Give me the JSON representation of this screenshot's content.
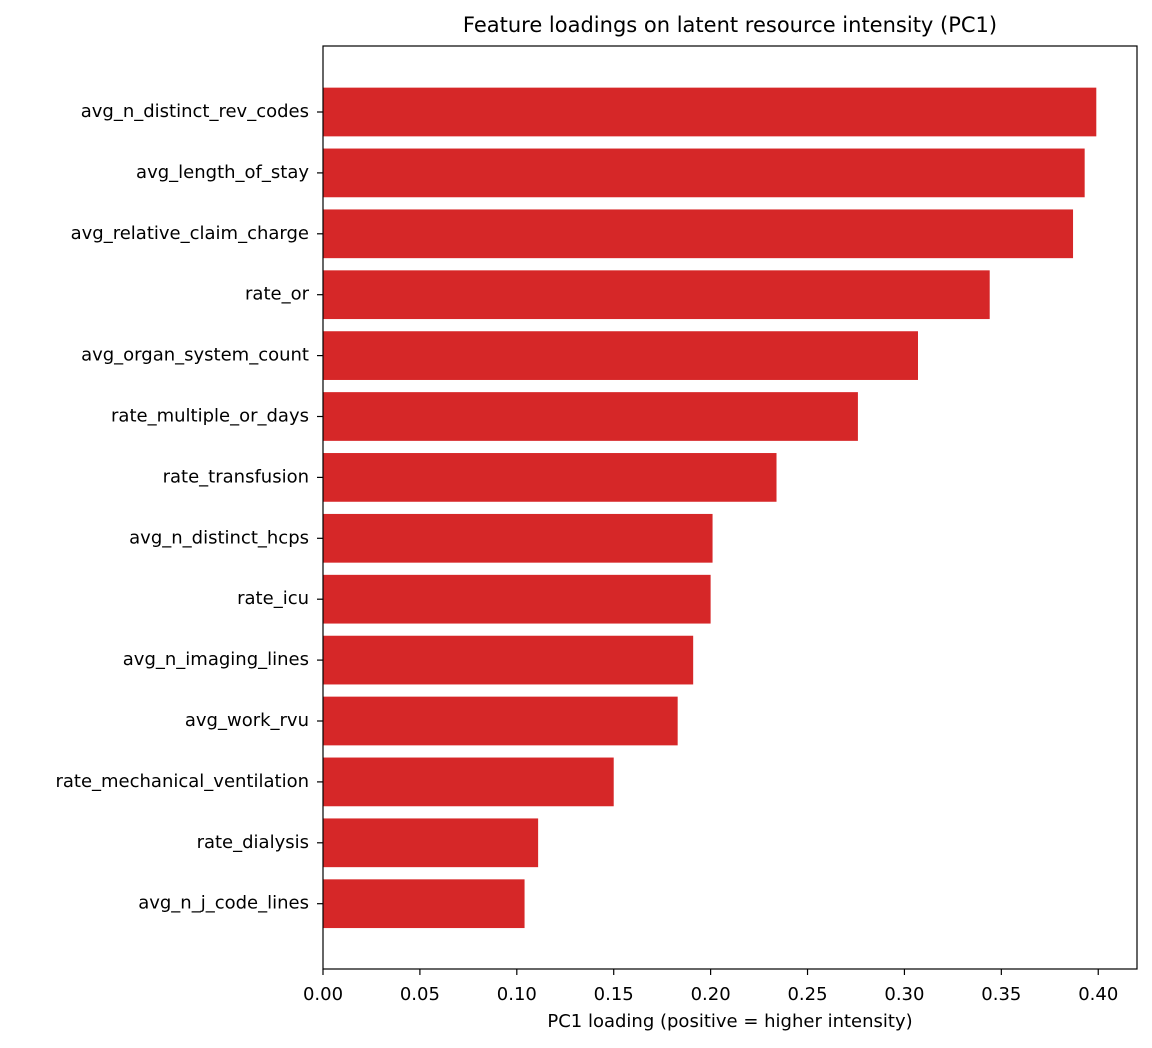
{
  "chart_data": {
    "type": "barh",
    "title": "Feature loadings on latent resource intensity (PC1)",
    "x_label": "PC1 loading (positive = higher intensity)",
    "categories": [
      "avg_n_distinct_rev_codes",
      "avg_length_of_stay",
      "avg_relative_claim_charge",
      "rate_or",
      "avg_organ_system_count",
      "rate_multiple_or_days",
      "rate_transfusion",
      "avg_n_distinct_hcps",
      "rate_icu",
      "avg_n_imaging_lines",
      "avg_work_rvu",
      "rate_mechanical_ventilation",
      "rate_dialysis",
      "avg_n_j_code_lines"
    ],
    "values": [
      0.399,
      0.393,
      0.387,
      0.344,
      0.307,
      0.276,
      0.234,
      0.201,
      0.2,
      0.191,
      0.183,
      0.15,
      0.111,
      0.104
    ],
    "color": "#d62728",
    "xlim": [
      0,
      0.42
    ],
    "xticks": [
      {
        "value": 0,
        "label": "0.00"
      },
      {
        "value": 0.05,
        "label": "0.05"
      },
      {
        "value": 0.1,
        "label": "0.10"
      },
      {
        "value": 0.15,
        "label": "0.15"
      },
      {
        "value": 0.2,
        "label": "0.20"
      },
      {
        "value": 0.25,
        "label": "0.25"
      },
      {
        "value": 0.3,
        "label": "0.30"
      },
      {
        "value": 0.35,
        "label": "0.35"
      },
      {
        "value": 0.4,
        "label": "0.40"
      }
    ],
    "grid": false
  }
}
